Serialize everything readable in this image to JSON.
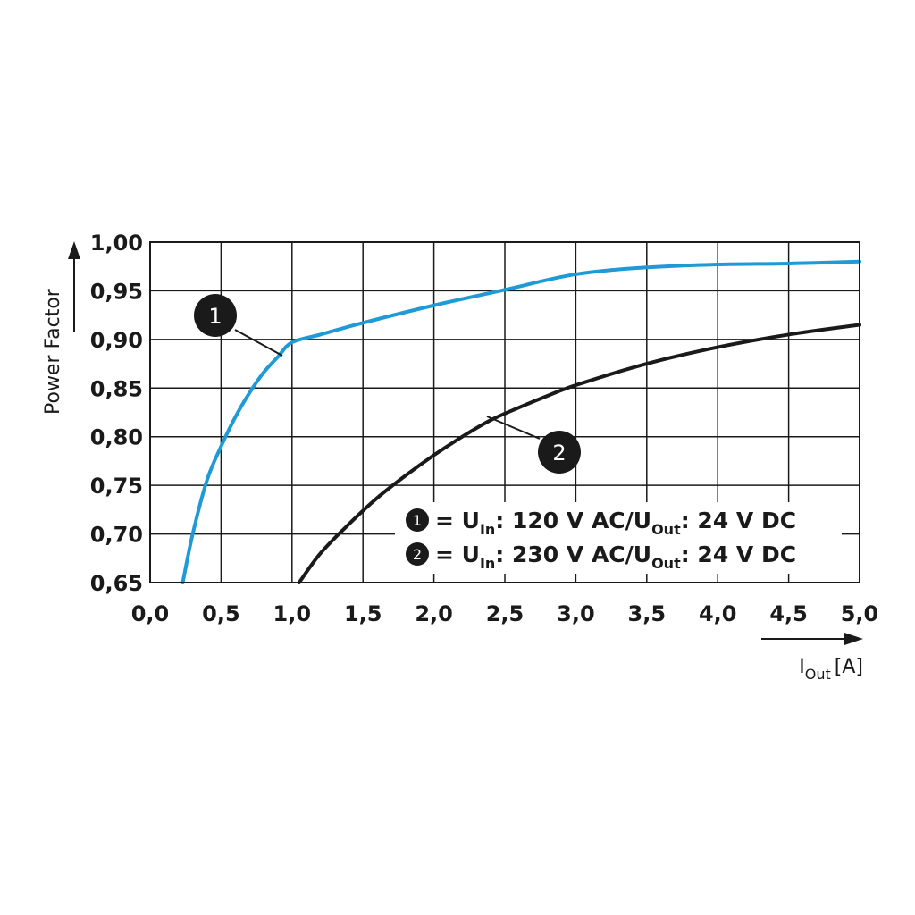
{
  "chart_data": {
    "type": "line",
    "ylabel": "Power Factor",
    "xlabel_main": "I",
    "xlabel_sub": "Out",
    "xlabel_unit": "[A]",
    "xlim": [
      0,
      5
    ],
    "ylim": [
      0.65,
      1.0
    ],
    "grid": true,
    "x_ticks": [
      "0,0",
      "0,5",
      "1,0",
      "1,5",
      "2,0",
      "2,5",
      "3,0",
      "3,5",
      "4,0",
      "4,5",
      "5,0"
    ],
    "y_ticks": [
      "1,00",
      "0,95",
      "0,90",
      "0,85",
      "0,80",
      "0,75",
      "0,70",
      "0,65"
    ],
    "series": [
      {
        "marker": "1",
        "color": "#1e9ad6",
        "x": [
          0.23,
          0.3,
          0.4,
          0.5,
          0.6,
          0.7,
          0.8,
          0.9,
          1.0,
          1.2,
          1.5,
          2.0,
          2.5,
          3.0,
          3.5,
          4.0,
          4.5,
          5.0
        ],
        "y": [
          0.65,
          0.7,
          0.755,
          0.79,
          0.82,
          0.845,
          0.866,
          0.882,
          0.897,
          0.905,
          0.917,
          0.935,
          0.951,
          0.967,
          0.974,
          0.977,
          0.978,
          0.98
        ]
      },
      {
        "marker": "2",
        "color": "#1a1a1a",
        "x": [
          1.05,
          1.2,
          1.4,
          1.6,
          1.8,
          2.0,
          2.2,
          2.4,
          2.6,
          2.8,
          3.0,
          3.5,
          4.0,
          4.5,
          5.0
        ],
        "y": [
          0.65,
          0.68,
          0.71,
          0.737,
          0.76,
          0.781,
          0.8,
          0.817,
          0.83,
          0.842,
          0.853,
          0.875,
          0.892,
          0.905,
          0.915
        ]
      }
    ],
    "legend": [
      {
        "marker": "1",
        "prefix": "= U",
        "sub1": "In",
        "mid": ": 120 V AC/U",
        "sub2": "Out",
        "suffix": ": 24 V DC"
      },
      {
        "marker": "2",
        "prefix": "= U",
        "sub1": "In",
        "mid": ": 230 V AC/U",
        "sub2": "Out",
        "suffix": ": 24 V DC"
      }
    ]
  }
}
